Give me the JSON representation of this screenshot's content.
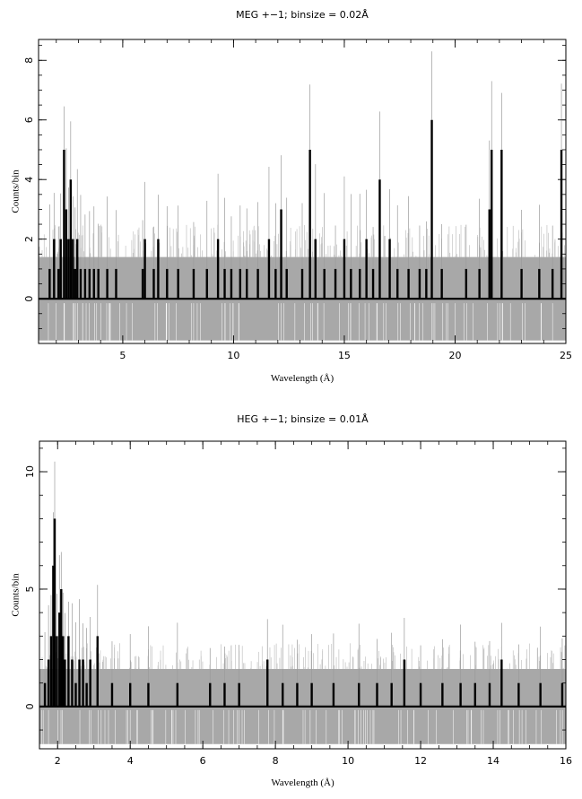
{
  "chart_data": [
    {
      "type": "bar",
      "title": "MEG +−1; binsize = 0.02Å",
      "xlabel": "Wavelength (Å)",
      "ylabel": "Counts/bin",
      "xlim": [
        1.2,
        25.0
      ],
      "ylim": [
        -1.5,
        8.7
      ],
      "xticks": [
        5,
        10,
        15,
        20,
        25
      ],
      "yticks": [
        0,
        2,
        4,
        6,
        8
      ],
      "x_minor_step": 1,
      "y_minor_step": 0.5,
      "uncertainty_band": [
        -1.4,
        1.4
      ],
      "spikes": [
        {
          "x": 1.7,
          "y": 1
        },
        {
          "x": 1.9,
          "y": 2
        },
        {
          "x": 2.1,
          "y": 1
        },
        {
          "x": 2.2,
          "y": 2
        },
        {
          "x": 2.35,
          "y": 5
        },
        {
          "x": 2.45,
          "y": 3
        },
        {
          "x": 2.55,
          "y": 2
        },
        {
          "x": 2.65,
          "y": 4
        },
        {
          "x": 2.75,
          "y": 2
        },
        {
          "x": 2.85,
          "y": 1
        },
        {
          "x": 2.95,
          "y": 2
        },
        {
          "x": 3.1,
          "y": 1
        },
        {
          "x": 3.3,
          "y": 1
        },
        {
          "x": 3.5,
          "y": 1
        },
        {
          "x": 3.7,
          "y": 1
        },
        {
          "x": 3.9,
          "y": 1
        },
        {
          "x": 4.3,
          "y": 1
        },
        {
          "x": 4.7,
          "y": 1
        },
        {
          "x": 5.9,
          "y": 1
        },
        {
          "x": 6.0,
          "y": 2
        },
        {
          "x": 6.4,
          "y": 1
        },
        {
          "x": 6.6,
          "y": 2
        },
        {
          "x": 7.0,
          "y": 1
        },
        {
          "x": 7.5,
          "y": 1
        },
        {
          "x": 8.2,
          "y": 1
        },
        {
          "x": 8.8,
          "y": 1
        },
        {
          "x": 9.3,
          "y": 2
        },
        {
          "x": 9.6,
          "y": 1
        },
        {
          "x": 9.9,
          "y": 1
        },
        {
          "x": 10.3,
          "y": 1
        },
        {
          "x": 10.6,
          "y": 1
        },
        {
          "x": 11.1,
          "y": 1
        },
        {
          "x": 11.6,
          "y": 2
        },
        {
          "x": 11.9,
          "y": 1
        },
        {
          "x": 12.15,
          "y": 3
        },
        {
          "x": 12.4,
          "y": 1
        },
        {
          "x": 13.1,
          "y": 1
        },
        {
          "x": 13.45,
          "y": 5
        },
        {
          "x": 13.7,
          "y": 2
        },
        {
          "x": 14.1,
          "y": 1
        },
        {
          "x": 14.6,
          "y": 1
        },
        {
          "x": 15.0,
          "y": 2
        },
        {
          "x": 15.3,
          "y": 1
        },
        {
          "x": 15.7,
          "y": 1
        },
        {
          "x": 16.0,
          "y": 2
        },
        {
          "x": 16.3,
          "y": 1
        },
        {
          "x": 16.6,
          "y": 4
        },
        {
          "x": 17.05,
          "y": 2
        },
        {
          "x": 17.4,
          "y": 1
        },
        {
          "x": 17.9,
          "y": 1
        },
        {
          "x": 18.4,
          "y": 1
        },
        {
          "x": 18.7,
          "y": 1
        },
        {
          "x": 18.95,
          "y": 6
        },
        {
          "x": 19.4,
          "y": 1
        },
        {
          "x": 20.5,
          "y": 1
        },
        {
          "x": 21.1,
          "y": 1
        },
        {
          "x": 21.55,
          "y": 3
        },
        {
          "x": 21.65,
          "y": 5
        },
        {
          "x": 22.1,
          "y": 5
        },
        {
          "x": 23.0,
          "y": 1
        },
        {
          "x": 23.8,
          "y": 1
        },
        {
          "x": 24.4,
          "y": 1
        },
        {
          "x": 24.8,
          "y": 5
        }
      ]
    },
    {
      "type": "bar",
      "title": "HEG +−1; binsize = 0.01Å",
      "xlabel": "Wavelength (Å)",
      "ylabel": "Counts/bin",
      "xlim": [
        1.5,
        16.0
      ],
      "ylim": [
        -1.8,
        11.3
      ],
      "xticks": [
        2,
        4,
        6,
        8,
        10,
        12,
        14,
        16
      ],
      "yticks": [
        0,
        5,
        10
      ],
      "x_minor_step": 0.5,
      "y_minor_step": 1,
      "uncertainty_band": [
        -1.6,
        1.6
      ],
      "spikes": [
        {
          "x": 1.65,
          "y": 1
        },
        {
          "x": 1.75,
          "y": 2
        },
        {
          "x": 1.82,
          "y": 3
        },
        {
          "x": 1.88,
          "y": 6
        },
        {
          "x": 1.92,
          "y": 8
        },
        {
          "x": 1.98,
          "y": 3
        },
        {
          "x": 2.05,
          "y": 4
        },
        {
          "x": 2.1,
          "y": 5
        },
        {
          "x": 2.15,
          "y": 3
        },
        {
          "x": 2.2,
          "y": 2
        },
        {
          "x": 2.3,
          "y": 3
        },
        {
          "x": 2.4,
          "y": 2
        },
        {
          "x": 2.5,
          "y": 1
        },
        {
          "x": 2.6,
          "y": 2
        },
        {
          "x": 2.7,
          "y": 2
        },
        {
          "x": 2.8,
          "y": 1
        },
        {
          "x": 2.9,
          "y": 2
        },
        {
          "x": 3.1,
          "y": 3
        },
        {
          "x": 3.5,
          "y": 1
        },
        {
          "x": 4.0,
          "y": 1
        },
        {
          "x": 4.5,
          "y": 1
        },
        {
          "x": 5.3,
          "y": 1
        },
        {
          "x": 6.2,
          "y": 1
        },
        {
          "x": 6.6,
          "y": 1
        },
        {
          "x": 7.0,
          "y": 1
        },
        {
          "x": 7.78,
          "y": 2
        },
        {
          "x": 8.2,
          "y": 1
        },
        {
          "x": 8.6,
          "y": 1
        },
        {
          "x": 9.0,
          "y": 1
        },
        {
          "x": 9.6,
          "y": 1
        },
        {
          "x": 10.3,
          "y": 1
        },
        {
          "x": 10.8,
          "y": 1
        },
        {
          "x": 11.2,
          "y": 1
        },
        {
          "x": 11.55,
          "y": 2
        },
        {
          "x": 12.0,
          "y": 1
        },
        {
          "x": 12.6,
          "y": 1
        },
        {
          "x": 13.1,
          "y": 1
        },
        {
          "x": 13.5,
          "y": 1
        },
        {
          "x": 13.9,
          "y": 1
        },
        {
          "x": 14.23,
          "y": 2
        },
        {
          "x": 14.7,
          "y": 1
        },
        {
          "x": 15.3,
          "y": 1
        },
        {
          "x": 15.9,
          "y": 1
        }
      ]
    }
  ]
}
